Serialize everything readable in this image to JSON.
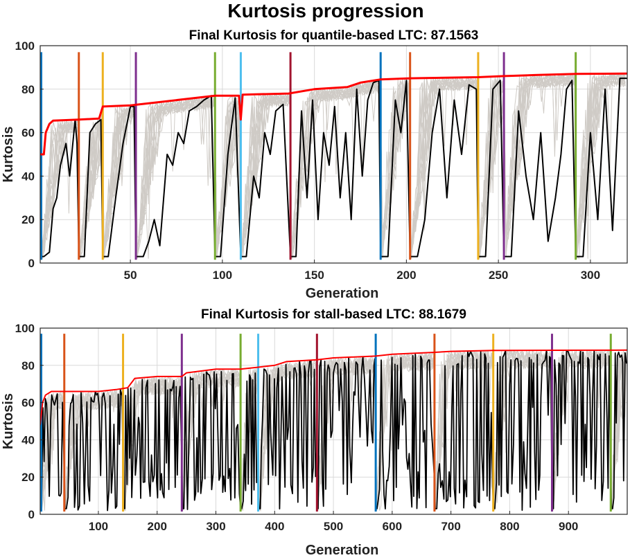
{
  "figure": {
    "title": "Kurtosis progression"
  },
  "colors": {
    "best": "#ff0000",
    "current": "#000000",
    "population": "#cfcbc6",
    "restart_palette": [
      "#0072bd",
      "#d95319",
      "#edb120",
      "#7e2f8e",
      "#77ac30",
      "#4dbeee",
      "#a2142f"
    ]
  },
  "chart_data": [
    {
      "type": "line",
      "title": "Final Kurtosis for quantile-based LTC: 87.1563",
      "xlabel": "Generation",
      "ylabel": "Kurtosis",
      "xlim": [
        1,
        320
      ],
      "ylim": [
        0,
        100
      ],
      "xticks": [
        50,
        100,
        150,
        200,
        250,
        300
      ],
      "yticks": [
        0,
        20,
        40,
        60,
        80,
        100
      ],
      "grid": true,
      "restarts": [
        1,
        22,
        35,
        53,
        96,
        110,
        137,
        186,
        202,
        239,
        253,
        292
      ],
      "series": [
        {
          "role": "best",
          "values": [
            [
              1,
              50
            ],
            [
              3,
              50
            ],
            [
              4,
              60
            ],
            [
              6,
              64
            ],
            [
              8,
              65.5
            ],
            [
              22,
              66
            ],
            [
              33,
              66.5
            ],
            [
              35,
              72
            ],
            [
              50,
              72.5
            ],
            [
              96,
              77
            ],
            [
              109,
              77
            ],
            [
              110,
              66
            ],
            [
              111,
              77.5
            ],
            [
              136,
              78
            ],
            [
              150,
              80
            ],
            [
              168,
              81
            ],
            [
              175,
              83
            ],
            [
              186,
              84.5
            ],
            [
              202,
              85
            ],
            [
              239,
              85.5
            ],
            [
              252,
              86
            ],
            [
              270,
              86.5
            ],
            [
              292,
              87
            ],
            [
              320,
              87.2
            ]
          ]
        },
        {
          "role": "current",
          "values": [
            [
              1,
              3
            ],
            [
              3,
              3
            ],
            [
              6,
              5
            ],
            [
              8,
              25
            ],
            [
              10,
              30
            ],
            [
              12,
              45
            ],
            [
              15,
              55
            ],
            [
              17,
              40
            ],
            [
              20,
              66
            ],
            [
              21,
              55
            ],
            [
              22,
              3
            ],
            [
              25,
              3
            ],
            [
              28,
              60
            ],
            [
              31,
              64
            ],
            [
              34,
              66
            ],
            [
              35,
              3
            ],
            [
              38,
              3
            ],
            [
              42,
              30
            ],
            [
              46,
              55
            ],
            [
              50,
              72
            ],
            [
              52,
              72
            ],
            [
              53,
              3
            ],
            [
              57,
              3
            ],
            [
              60,
              10
            ],
            [
              63,
              20
            ],
            [
              66,
              8
            ],
            [
              70,
              50
            ],
            [
              73,
              45
            ],
            [
              76,
              60
            ],
            [
              79,
              55
            ],
            [
              82,
              70
            ],
            [
              86,
              72
            ],
            [
              90,
              75
            ],
            [
              94,
              77
            ],
            [
              96,
              3
            ],
            [
              99,
              3
            ],
            [
              103,
              50
            ],
            [
              107,
              76
            ],
            [
              110,
              3
            ],
            [
              113,
              3
            ],
            [
              117,
              40
            ],
            [
              120,
              30
            ],
            [
              123,
              60
            ],
            [
              126,
              50
            ],
            [
              129,
              70
            ],
            [
              133,
              73
            ],
            [
              137,
              3
            ],
            [
              140,
              3
            ],
            [
              143,
              70
            ],
            [
              146,
              30
            ],
            [
              149,
              75
            ],
            [
              152,
              20
            ],
            [
              155,
              60
            ],
            [
              158,
              45
            ],
            [
              161,
              72
            ],
            [
              164,
              30
            ],
            [
              167,
              60
            ],
            [
              170,
              20
            ],
            [
              173,
              80
            ],
            [
              176,
              40
            ],
            [
              179,
              75
            ],
            [
              182,
              83
            ],
            [
              185,
              84
            ],
            [
              186,
              3
            ],
            [
              190,
              3
            ],
            [
              194,
              75
            ],
            [
              197,
              60
            ],
            [
              200,
              84
            ],
            [
              202,
              3
            ],
            [
              206,
              3
            ],
            [
              210,
              20
            ],
            [
              214,
              60
            ],
            [
              218,
              80
            ],
            [
              222,
              30
            ],
            [
              226,
              75
            ],
            [
              230,
              50
            ],
            [
              234,
              82
            ],
            [
              238,
              80
            ],
            [
              239,
              3
            ],
            [
              243,
              3
            ],
            [
              247,
              80
            ],
            [
              251,
              84
            ],
            [
              253,
              3
            ],
            [
              257,
              3
            ],
            [
              261,
              70
            ],
            [
              265,
              40
            ],
            [
              269,
              20
            ],
            [
              273,
              60
            ],
            [
              277,
              10
            ],
            [
              281,
              30
            ],
            [
              284,
              50
            ],
            [
              287,
              80
            ],
            [
              290,
              84
            ],
            [
              292,
              3
            ],
            [
              296,
              3
            ],
            [
              300,
              60
            ],
            [
              304,
              20
            ],
            [
              308,
              80
            ],
            [
              312,
              15
            ],
            [
              316,
              85
            ],
            [
              320,
              85
            ]
          ]
        }
      ]
    },
    {
      "type": "line",
      "title": "Final Kurtosis for stall-based LTC: 88.1679",
      "xlabel": "Generation",
      "ylabel": "Kurtosis",
      "xlim": [
        1,
        1000
      ],
      "ylim": [
        0,
        100
      ],
      "xticks": [
        100,
        200,
        300,
        400,
        500,
        600,
        700,
        800,
        900
      ],
      "yticks": [
        0,
        20,
        40,
        60,
        80,
        100
      ],
      "grid": true,
      "restarts": [
        1,
        42,
        142,
        242,
        342,
        372,
        472,
        572,
        672,
        772,
        872,
        972
      ],
      "series": [
        {
          "role": "best",
          "values": [
            [
              1,
              48
            ],
            [
              5,
              60
            ],
            [
              10,
              64
            ],
            [
              20,
              66
            ],
            [
              42,
              66
            ],
            [
              100,
              66
            ],
            [
              130,
              67
            ],
            [
              150,
              68
            ],
            [
              162,
              73
            ],
            [
              200,
              74
            ],
            [
              242,
              74
            ],
            [
              250,
              76
            ],
            [
              300,
              78
            ],
            [
              342,
              78
            ],
            [
              372,
              79
            ],
            [
              400,
              80
            ],
            [
              420,
              82
            ],
            [
              472,
              83
            ],
            [
              500,
              84
            ],
            [
              572,
              85
            ],
            [
              600,
              86
            ],
            [
              672,
              87
            ],
            [
              700,
              87.5
            ],
            [
              772,
              88
            ],
            [
              872,
              88.1
            ],
            [
              1000,
              88.17
            ]
          ]
        }
      ]
    }
  ]
}
